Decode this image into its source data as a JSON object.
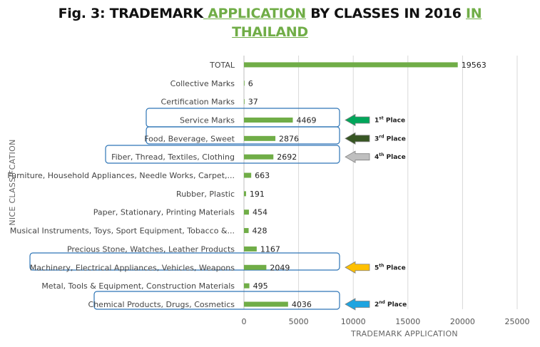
{
  "title": {
    "part1": "Fig. 3: TRADEMARK",
    "part2": "APPLICATION",
    "part3": "BY CLASSES IN 2016",
    "part4": "IN",
    "part5": "THAILAND"
  },
  "chart_data": {
    "type": "bar",
    "orientation": "horizontal",
    "xlabel": "TRADEMARK APPLICATION",
    "ylabel": "NICE CLASSIFCATION",
    "xlim": [
      0,
      25000
    ],
    "xticks": [
      0,
      5000,
      10000,
      15000,
      20000,
      25000
    ],
    "grid": true,
    "bar_color": "#70ad47",
    "categories": [
      "TOTAL",
      "Collective Marks",
      "Certification Marks",
      "Service Marks",
      "Food, Beverage, Sweet",
      "Fiber, Thread, Textiles, Clothing",
      "Furniture, Household Appliances, Needle Works, Carpet,...",
      "Rubber, Plastic",
      "Paper, Stationary, Printing Materials",
      "Musical Instruments, Toys, Sport Equipment, Tobacco &...",
      "Precious Stone, Watches, Leather Products",
      "Machinery, Electrical Appliances, Vehicles, Weapons",
      "Metal, Tools & Equipment, Construction Materials",
      "Chemical Products, Drugs, Cosmetics"
    ],
    "values": [
      19563,
      6,
      37,
      4469,
      2876,
      2692,
      663,
      191,
      454,
      428,
      1167,
      2049,
      495,
      4036
    ],
    "rankings": [
      {
        "category": "Service Marks",
        "rank": "1",
        "suffix": "st",
        "word": "Place",
        "color": "#00a65a"
      },
      {
        "category": "Food, Beverage, Sweet",
        "rank": "3",
        "suffix": "rd",
        "word": "Place",
        "color": "#375623"
      },
      {
        "category": "Fiber, Thread, Textiles, Clothing",
        "rank": "4",
        "suffix": "th",
        "word": "Place",
        "color": "#bfbfbf"
      },
      {
        "category": "Machinery, Electrical Appliances, Vehicles, Weapons",
        "rank": "5",
        "suffix": "th",
        "word": "Place",
        "color": "#ffc000"
      },
      {
        "category": "Chemical Products, Drugs, Cosmetics",
        "rank": "2",
        "suffix": "nd",
        "word": "Place",
        "color": "#1ea4e0"
      }
    ]
  }
}
